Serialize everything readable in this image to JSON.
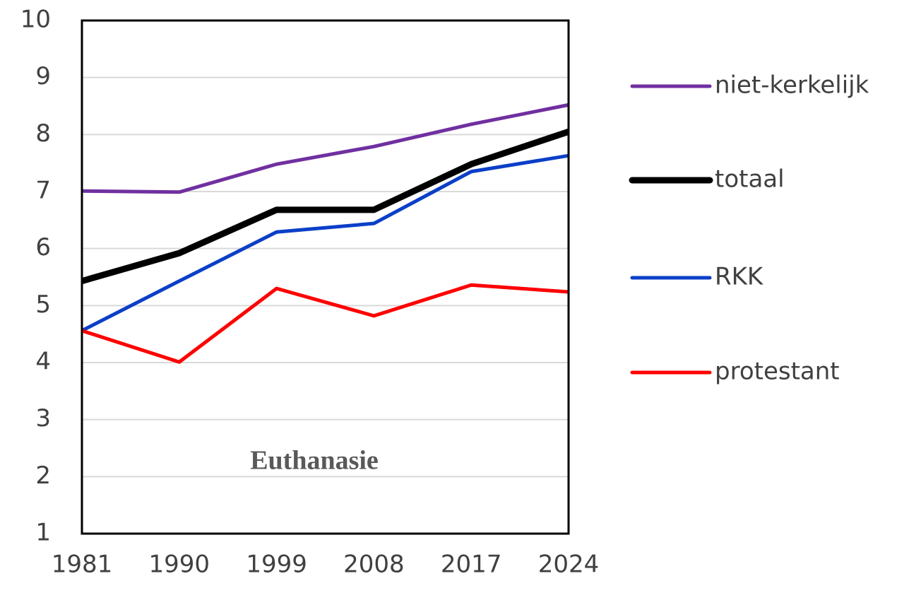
{
  "chart_data": {
    "type": "line",
    "annotation": "Euthanasie",
    "categories": [
      "1981",
      "1990",
      "1999",
      "2008",
      "2017",
      "2024"
    ],
    "series": [
      {
        "name": "niet-kerkelijk",
        "color": "#7030a0",
        "width": 5,
        "values": [
          7.01,
          6.99,
          7.48,
          7.79,
          8.18,
          8.52
        ]
      },
      {
        "name": "totaal",
        "color": "#000000",
        "width": 9,
        "values": [
          5.43,
          5.92,
          6.68,
          6.68,
          7.48,
          8.05
        ]
      },
      {
        "name": "RKK",
        "color": "#0b3fc8",
        "width": 5,
        "values": [
          4.56,
          5.43,
          6.29,
          6.44,
          7.35,
          7.63
        ]
      },
      {
        "name": "protestant",
        "color": "#ff0000",
        "width": 5,
        "values": [
          4.56,
          4.01,
          5.3,
          4.82,
          5.36,
          5.24
        ]
      }
    ],
    "ylim": [
      1,
      10
    ],
    "yticks": [
      1,
      2,
      3,
      4,
      5,
      6,
      7,
      8,
      9,
      10
    ],
    "grid": true,
    "legend": "right"
  }
}
